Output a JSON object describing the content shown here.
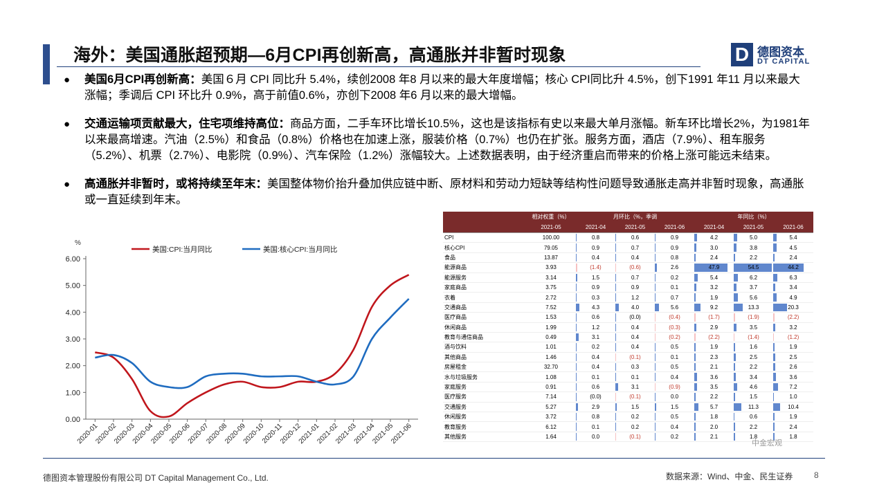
{
  "header": {
    "title": "海外：美国通胀超预期—6月CPI再创新高，高通胀并非暂时现象",
    "logo_mark": "D",
    "logo_cn": "德图资本",
    "logo_en": "DT CAPITAL"
  },
  "bullets": [
    {
      "head": "美国6月CPI再创新高：",
      "text": "美国６月 CPI 同比升 5.4%，续创2008 年8 月以来的最大年度增幅；核心 CPI同比升 4.5%，创下1991 年11 月以来最大涨幅；季调后 CPI 环比升 0.9%，高于前值0.6%，亦创下2008 年6 月以来的最大增幅。"
    },
    {
      "head": "交通运输项贡献最大，住宅项维持高位：",
      "text": "商品方面，二手车环比增长10.5%，这也是该指标有史以来最大单月涨幅。新车环比增长2%，为1981年以来最高增速。汽油（2.5%）和食品（0.8%）价格也在加速上涨，服装价格（0.7%）也仍在扩张。服务方面，酒店（7.9%）、租车服务（5.2%）、机票（2.7%）、电影院（0.9%）、汽车保险（1.2%）涨幅较大。上述数据表明，由于经济重启而带来的价格上涨可能远未结束。"
    },
    {
      "head": "高通胀并非暂时，或将持续至年末：",
      "text": "美国整体物价抬升叠加供应链中断、原材料和劳动力短缺等结构性问题导致通胀走高并非暂时现象，高通胀或一直延续到年末。"
    }
  ],
  "chart_data": {
    "type": "line",
    "title": "",
    "xlabel": "",
    "ylabel": "%",
    "ylim": [
      0,
      6
    ],
    "yticks": [
      "0.00",
      "1.00",
      "2.00",
      "3.00",
      "4.00",
      "5.00",
      "6.00"
    ],
    "categories": [
      "2020-01",
      "2020-02",
      "2020-03",
      "2020-04",
      "2020-05",
      "2020-06",
      "2020-07",
      "2020-08",
      "2020-09",
      "2020-10",
      "2020-11",
      "2020-12",
      "2021-01",
      "2021-02",
      "2021-03",
      "2021-04",
      "2021-05",
      "2021-06"
    ],
    "legend_position": "top",
    "series": [
      {
        "name": "美国:CPI:当月同比",
        "color": "#c0161c",
        "values": [
          2.5,
          2.3,
          1.5,
          0.3,
          0.1,
          0.6,
          1.0,
          1.3,
          1.4,
          1.2,
          1.2,
          1.4,
          1.4,
          1.7,
          2.6,
          4.2,
          5.0,
          5.4
        ]
      },
      {
        "name": "美国:核心CPI:当月同比",
        "color": "#1f6cc0",
        "values": [
          2.3,
          2.4,
          2.1,
          1.4,
          1.2,
          1.2,
          1.6,
          1.7,
          1.7,
          1.6,
          1.6,
          1.6,
          1.4,
          1.3,
          1.6,
          3.0,
          3.8,
          4.5
        ]
      }
    ]
  },
  "table": {
    "header_row1": [
      "",
      "相对权重（%）",
      "月环比（%，季调",
      "年同比（%）"
    ],
    "header_row2": [
      "",
      "2021-05",
      "2021-04",
      "2021-05",
      "2021-06",
      "2021-04",
      "2021-05",
      "2021-06"
    ],
    "bar_color": "#4472c4",
    "rows": [
      {
        "name": "CPI",
        "w": "100.00",
        "m": [
          "0.8",
          "0.6",
          "0.9"
        ],
        "y": [
          "4.2",
          "5.0",
          "5.4"
        ],
        "grp": true
      },
      {
        "name": "核心CPI",
        "w": "79.05",
        "m": [
          "0.9",
          "0.7",
          "0.9"
        ],
        "y": [
          "3.0",
          "3.8",
          "4.5"
        ]
      },
      {
        "name": "食品",
        "w": "13.87",
        "m": [
          "0.4",
          "0.4",
          "0.8"
        ],
        "y": [
          "2.4",
          "2.2",
          "2.4"
        ],
        "grp": true
      },
      {
        "name": "能源商品",
        "w": "3.93",
        "m": [
          "(1.4)",
          "(0.6)",
          "2.6"
        ],
        "y": [
          "47.9",
          "54.5",
          "44.2"
        ]
      },
      {
        "name": "能源服务",
        "w": "3.14",
        "m": [
          "1.5",
          "0.7",
          "0.2"
        ],
        "y": [
          "5.4",
          "6.2",
          "6.3"
        ]
      },
      {
        "name": "家庭商品",
        "w": "3.75",
        "m": [
          "0.9",
          "0.9",
          "0.1"
        ],
        "y": [
          "3.2",
          "3.7",
          "3.4"
        ],
        "grp": true
      },
      {
        "name": "衣着",
        "w": "2.72",
        "m": [
          "0.3",
          "1.2",
          "0.7"
        ],
        "y": [
          "1.9",
          "5.6",
          "4.9"
        ]
      },
      {
        "name": "交通商品",
        "w": "7.52",
        "m": [
          "4.3",
          "4.0",
          "5.6"
        ],
        "y": [
          "9.2",
          "13.3",
          "20.3"
        ]
      },
      {
        "name": "医疗商品",
        "w": "1.53",
        "m": [
          "0.6",
          "(0.0)",
          "(0.4)"
        ],
        "y": [
          "(1.7)",
          "(1.9)",
          "(2.2)"
        ]
      },
      {
        "name": "休闲商品",
        "w": "1.99",
        "m": [
          "1.2",
          "0.4",
          "(0.3)"
        ],
        "y": [
          "2.9",
          "3.5",
          "3.2"
        ]
      },
      {
        "name": "教育与通信商品",
        "w": "0.49",
        "m": [
          "3.1",
          "0.4",
          "(0.2)"
        ],
        "y": [
          "(2.2)",
          "(1.4)",
          "(1.2)"
        ]
      },
      {
        "name": "酒与饮料",
        "w": "1.01",
        "m": [
          "0.2",
          "0.4",
          "0.5"
        ],
        "y": [
          "1.9",
          "1.6",
          "1.9"
        ]
      },
      {
        "name": "其他商品",
        "w": "1.46",
        "m": [
          "0.4",
          "(0.1)",
          "0.1"
        ],
        "y": [
          "2.3",
          "2.5",
          "2.5"
        ]
      },
      {
        "name": "房屋租金",
        "w": "32.70",
        "m": [
          "0.4",
          "0.3",
          "0.5"
        ],
        "y": [
          "2.1",
          "2.2",
          "2.6"
        ],
        "grp": true
      },
      {
        "name": "水与垃圾服务",
        "w": "1.08",
        "m": [
          "0.1",
          "0.1",
          "0.4"
        ],
        "y": [
          "3.6",
          "3.4",
          "3.6"
        ]
      },
      {
        "name": "家庭服务",
        "w": "0.91",
        "m": [
          "0.6",
          "3.1",
          "(0.9)"
        ],
        "y": [
          "3.5",
          "4.6",
          "7.2"
        ]
      },
      {
        "name": "医疗服务",
        "w": "7.14",
        "m": [
          "(0.0)",
          "(0.1)",
          "0.0"
        ],
        "y": [
          "2.2",
          "1.5",
          "1.0"
        ]
      },
      {
        "name": "交通服务",
        "w": "5.27",
        "m": [
          "2.9",
          "1.5",
          "1.5"
        ],
        "y": [
          "5.7",
          "11.3",
          "10.4"
        ]
      },
      {
        "name": "休闲服务",
        "w": "3.72",
        "m": [
          "0.8",
          "0.2",
          "0.5"
        ],
        "y": [
          "1.8",
          "0.6",
          "1.9"
        ]
      },
      {
        "name": "教育服务",
        "w": "6.12",
        "m": [
          "0.1",
          "0.2",
          "0.4"
        ],
        "y": [
          "2.0",
          "2.2",
          "2.4"
        ]
      },
      {
        "name": "其他服务",
        "w": "1.64",
        "m": [
          "0.0",
          "(0.1)",
          "0.2"
        ],
        "y": [
          "2.1",
          "1.8",
          "1.8"
        ]
      }
    ]
  },
  "watermark": "中金宏观",
  "footer": {
    "left": "德图资本管理股份有限公司  DT Capital  Management  Co., Ltd.",
    "right": "数据来源：Wind、中金、民生证券",
    "page": "8"
  }
}
